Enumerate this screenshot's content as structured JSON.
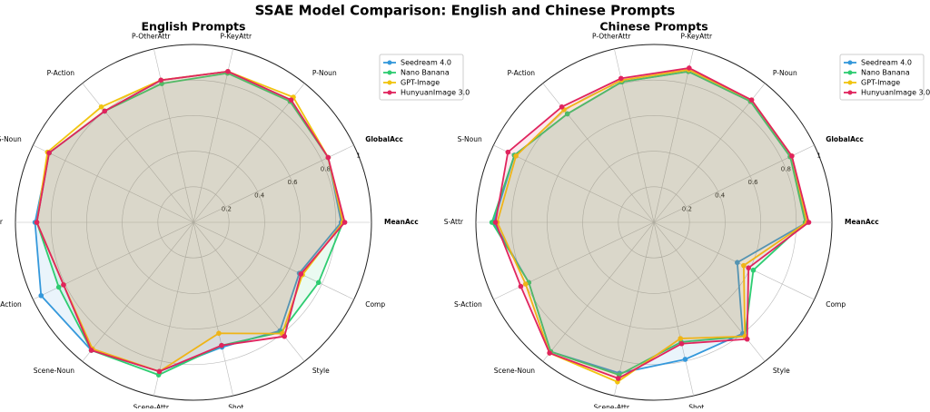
{
  "title": "SSAE Model Comparison: English and Chinese Prompts",
  "chart_data": [
    {
      "type": "radar",
      "title": "English Prompts",
      "categories": [
        "MeanAcc",
        "GlobalAcc",
        "P-Noun",
        "P-KeyAttr",
        "P-OtherAttr",
        "P-Action",
        "S-Noun",
        "S-Attr",
        "S-Action",
        "Scene-Noun",
        "Scene-Attr",
        "Shot",
        "Style",
        "Comp"
      ],
      "ylim": [
        0,
        1
      ],
      "yticks": [
        0.2,
        0.4,
        0.6,
        0.8,
        1.0
      ],
      "series": [
        {
          "name": "Seedream 4.0",
          "color": "#3498db",
          "values": [
            0.83,
            0.84,
            0.88,
            0.87,
            0.82,
            0.8,
            0.9,
            0.89,
            0.95,
            0.92,
            0.86,
            0.72,
            0.78,
            0.66
          ]
        },
        {
          "name": "Nano Banana",
          "color": "#2ecc71",
          "values": [
            0.84,
            0.84,
            0.87,
            0.86,
            0.8,
            0.8,
            0.9,
            0.88,
            0.84,
            0.92,
            0.88,
            0.71,
            0.79,
            0.78
          ]
        },
        {
          "name": "GPT-Image",
          "color": "#f1c40f",
          "values": [
            0.84,
            0.84,
            0.9,
            0.87,
            0.82,
            0.83,
            0.91,
            0.88,
            0.81,
            0.91,
            0.86,
            0.64,
            0.8,
            0.68
          ]
        },
        {
          "name": "HunyuanImage 3.0",
          "color": "#e0245e",
          "values": [
            0.85,
            0.84,
            0.88,
            0.87,
            0.82,
            0.8,
            0.9,
            0.88,
            0.81,
            0.92,
            0.86,
            0.71,
            0.82,
            0.67
          ]
        }
      ]
    },
    {
      "type": "radar",
      "title": "Chinese Prompts",
      "categories": [
        "MeanAcc",
        "GlobalAcc",
        "P-Noun",
        "P-KeyAttr",
        "P-OtherAttr",
        "P-Action",
        "S-Noun",
        "S-Attr",
        "S-Action",
        "Scene-Noun",
        "Scene-Attr",
        "Shot",
        "Style",
        "Comp"
      ],
      "ylim": [
        0,
        1
      ],
      "yticks": [
        0.2,
        0.4,
        0.6,
        0.8,
        1.0
      ],
      "series": [
        {
          "name": "Seedream 4.0",
          "color": "#3498db",
          "values": [
            0.86,
            0.85,
            0.87,
            0.87,
            0.81,
            0.78,
            0.87,
            0.9,
            0.78,
            0.93,
            0.87,
            0.79,
            0.8,
            0.52
          ]
        },
        {
          "name": "Nano Banana",
          "color": "#2ecc71",
          "values": [
            0.85,
            0.85,
            0.87,
            0.87,
            0.81,
            0.78,
            0.87,
            0.91,
            0.78,
            0.93,
            0.88,
            0.69,
            0.82,
            0.62
          ]
        },
        {
          "name": "GPT-Image",
          "color": "#f1c40f",
          "values": [
            0.86,
            0.86,
            0.88,
            0.88,
            0.82,
            0.81,
            0.86,
            0.88,
            0.8,
            0.94,
            0.92,
            0.67,
            0.82,
            0.56
          ]
        },
        {
          "name": "HunyuanImage 3.0",
          "color": "#e0245e",
          "values": [
            0.87,
            0.86,
            0.88,
            0.89,
            0.83,
            0.83,
            0.91,
            0.89,
            0.83,
            0.94,
            0.9,
            0.7,
            0.84,
            0.59
          ]
        }
      ]
    }
  ]
}
